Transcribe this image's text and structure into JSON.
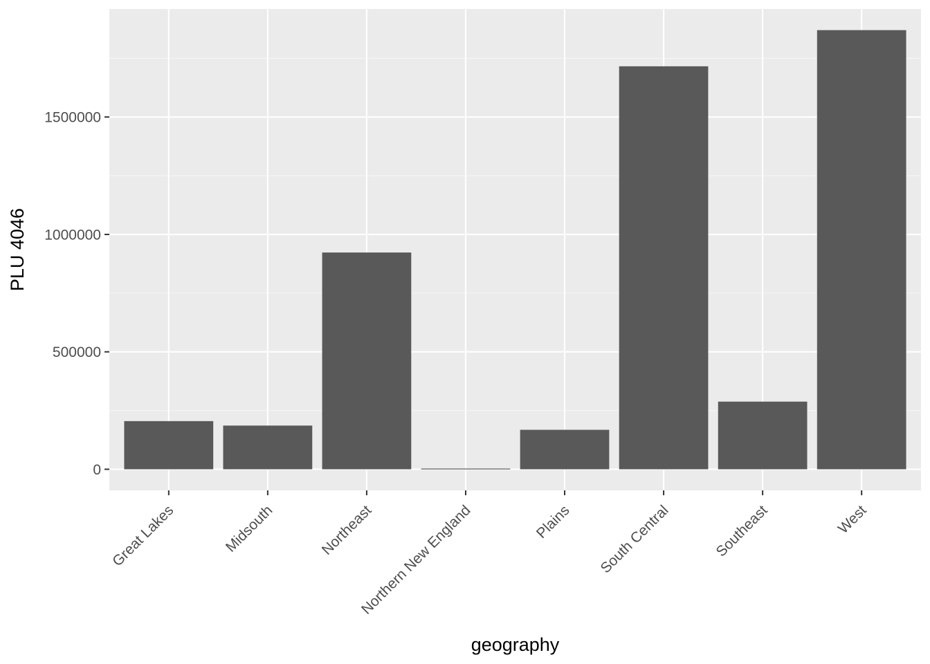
{
  "chart_data": {
    "type": "bar",
    "title": "",
    "xlabel": "geography",
    "ylabel": "PLU 4046",
    "categories": [
      "Great Lakes",
      "Midsouth",
      "Northeast",
      "Northern New England",
      "Plains",
      "South Central",
      "Southeast",
      "West"
    ],
    "values": [
      205000,
      186000,
      923000,
      3000,
      168000,
      1716000,
      288000,
      1870000
    ],
    "yticks": [
      0,
      500000,
      1000000,
      1500000
    ],
    "ytick_labels": [
      "0",
      "500000",
      "1000000",
      "1500000"
    ],
    "ylim": [
      -90000,
      1960000
    ],
    "grid": true,
    "legend": "none",
    "colors": {
      "panel": "#ebebeb",
      "bar": "#595959",
      "grid_major": "#ffffff",
      "grid_minor": "#f5f5f5",
      "tick": "#333333"
    }
  }
}
